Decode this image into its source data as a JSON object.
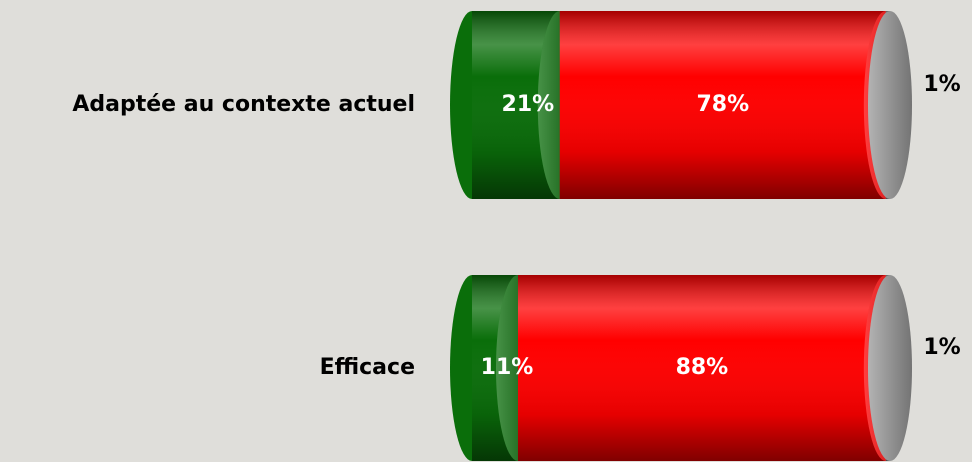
{
  "chart_data": {
    "type": "stacked-cylinder-bar",
    "categories": [
      "Adaptée au contexte actuel",
      "Efficace"
    ],
    "series": [
      {
        "color": "#0a6e0a",
        "values": [
          21,
          11
        ],
        "value_labels": [
          "21%",
          "11%"
        ]
      },
      {
        "color": "#ff0000",
        "values": [
          78,
          88
        ],
        "value_labels": [
          "78%",
          "88%"
        ]
      },
      {
        "color": "#9a9a9a",
        "values": [
          1,
          1
        ],
        "value_labels": [
          "1%",
          "1%"
        ]
      }
    ]
  }
}
